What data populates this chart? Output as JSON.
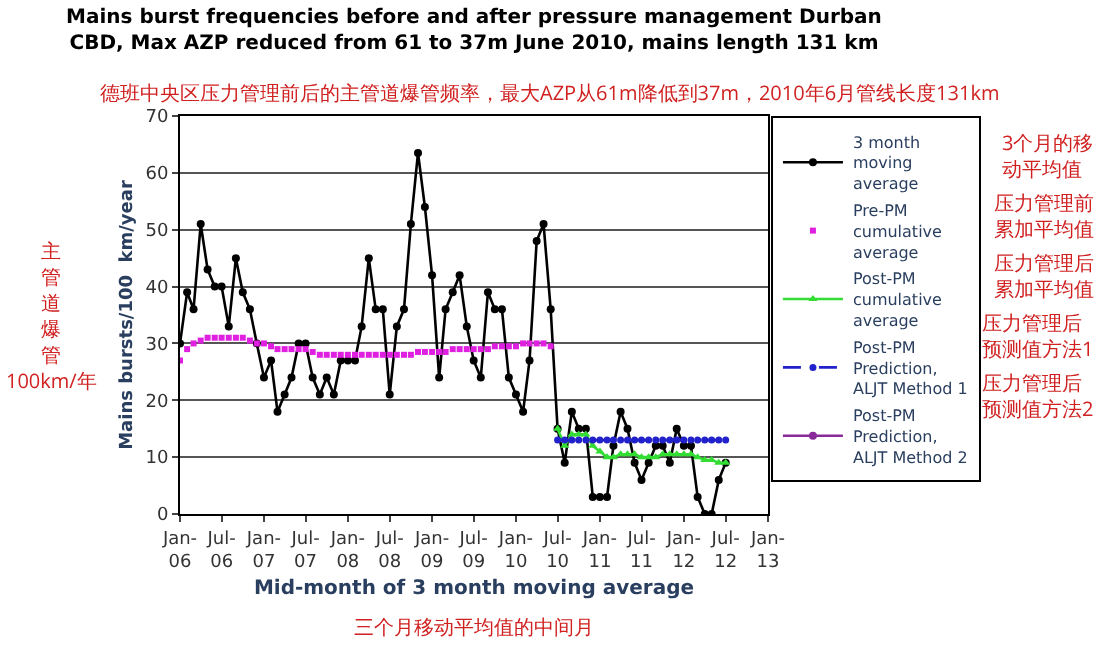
{
  "chart_data": {
    "type": "line",
    "title": "Mains burst frequencies before and after pressure management Durban\nCBD, Max AZP reduced from 61 to 37m June 2010, mains length 131 km",
    "subtitle": "德班中央区压力管理前后的主管道爆管频率，最大AZP从61m降低到37m，2010年6月管线长度131km",
    "xlabel": "Mid-month of 3 month moving average",
    "ylabel": "Mains bursts/100  km/year",
    "annotations": [
      "主管道爆管 100km/年",
      "三个月移动平均值的中间月",
      "3个月的移动平均值",
      "压力管理前累加平均值",
      "压力管理后累加平均值",
      "压力管理后预测值方法1",
      "压力管理后预测值方法2"
    ],
    "xlim": [
      "2006-01",
      "2013-01"
    ],
    "xticks": [
      {
        "value": "2006-01",
        "label": "Jan-\n06"
      },
      {
        "value": "2006-07",
        "label": "Jul-\n06"
      },
      {
        "value": "2007-01",
        "label": "Jan-\n07"
      },
      {
        "value": "2007-07",
        "label": "Jul-\n07"
      },
      {
        "value": "2008-01",
        "label": "Jan-\n08"
      },
      {
        "value": "2008-07",
        "label": "Jul-\n08"
      },
      {
        "value": "2009-01",
        "label": "Jan-\n09"
      },
      {
        "value": "2009-07",
        "label": "Jul-\n09"
      },
      {
        "value": "2010-01",
        "label": "Jan-\n10"
      },
      {
        "value": "2010-07",
        "label": "Jul-\n10"
      },
      {
        "value": "2011-01",
        "label": "Jan-\n11"
      },
      {
        "value": "2011-07",
        "label": "Jul-\n11"
      },
      {
        "value": "2012-01",
        "label": "Jan-\n12"
      },
      {
        "value": "2012-07",
        "label": "Jul-\n12"
      },
      {
        "value": "2013-01",
        "label": "Jan-\n13"
      }
    ],
    "ylim": [
      0,
      70
    ],
    "yticks": [
      0,
      10,
      20,
      30,
      40,
      50,
      60,
      70
    ],
    "grid": "y",
    "legend": "right",
    "series": [
      {
        "name": "3 month moving average",
        "marker": "circle",
        "color": "#000000",
        "x": [
          "2006-01",
          "2006-02",
          "2006-03",
          "2006-04",
          "2006-05",
          "2006-06",
          "2006-07",
          "2006-08",
          "2006-09",
          "2006-10",
          "2006-11",
          "2006-12",
          "2007-01",
          "2007-02",
          "2007-03",
          "2007-04",
          "2007-05",
          "2007-06",
          "2007-07",
          "2007-08",
          "2007-09",
          "2007-10",
          "2007-11",
          "2007-12",
          "2008-01",
          "2008-02",
          "2008-03",
          "2008-04",
          "2008-05",
          "2008-06",
          "2008-07",
          "2008-08",
          "2008-09",
          "2008-10",
          "2008-11",
          "2008-12",
          "2009-01",
          "2009-02",
          "2009-03",
          "2009-04",
          "2009-05",
          "2009-06",
          "2009-07",
          "2009-08",
          "2009-09",
          "2009-10",
          "2009-11",
          "2009-12",
          "2010-01",
          "2010-02",
          "2010-03",
          "2010-04",
          "2010-05",
          "2010-06",
          "2010-07",
          "2010-08",
          "2010-09",
          "2010-10",
          "2010-11",
          "2010-12",
          "2011-01",
          "2011-02",
          "2011-03",
          "2011-04",
          "2011-05",
          "2011-06",
          "2011-07",
          "2011-08",
          "2011-09",
          "2011-10",
          "2011-11",
          "2011-12",
          "2012-01",
          "2012-02",
          "2012-03",
          "2012-04",
          "2012-05",
          "2012-06",
          "2012-07"
        ],
        "values": [
          30,
          39,
          36,
          51,
          43,
          40,
          40,
          33,
          45,
          39,
          36,
          30,
          24,
          27,
          18,
          21,
          24,
          30,
          30,
          24,
          21,
          24,
          21,
          27,
          27,
          27,
          33,
          45,
          36,
          36,
          21,
          33,
          36,
          51,
          63.5,
          54,
          42,
          24,
          36,
          39,
          42,
          33,
          27,
          24,
          39,
          36,
          36,
          24,
          21,
          18,
          27,
          48,
          51,
          36,
          15,
          9,
          18,
          15,
          15,
          3,
          3,
          3,
          12,
          18,
          15,
          9,
          6,
          9,
          12,
          12,
          9,
          15,
          12,
          12,
          3,
          0,
          0,
          6,
          9
        ]
      },
      {
        "name": "Pre-PM cumulative average",
        "type": "scatter",
        "marker": "square",
        "color": "#e020e0",
        "x": [
          "2006-01",
          "2006-02",
          "2006-03",
          "2006-04",
          "2006-05",
          "2006-06",
          "2006-07",
          "2006-08",
          "2006-09",
          "2006-10",
          "2006-11",
          "2006-12",
          "2007-01",
          "2007-02",
          "2007-03",
          "2007-04",
          "2007-05",
          "2007-06",
          "2007-07",
          "2007-08",
          "2007-09",
          "2007-10",
          "2007-11",
          "2007-12",
          "2008-01",
          "2008-02",
          "2008-03",
          "2008-04",
          "2008-05",
          "2008-06",
          "2008-07",
          "2008-08",
          "2008-09",
          "2008-10",
          "2008-11",
          "2008-12",
          "2009-01",
          "2009-02",
          "2009-03",
          "2009-04",
          "2009-05",
          "2009-06",
          "2009-07",
          "2009-08",
          "2009-09",
          "2009-10",
          "2009-11",
          "2009-12",
          "2010-01",
          "2010-02",
          "2010-03",
          "2010-04",
          "2010-05",
          "2010-06"
        ],
        "values": [
          27,
          29,
          30,
          30.5,
          31,
          31,
          31,
          31,
          31,
          31,
          30.5,
          30,
          30,
          29.5,
          29,
          29,
          29,
          29,
          29,
          28.5,
          28,
          28,
          28,
          28,
          28,
          28,
          28,
          28,
          28,
          28,
          28,
          28,
          28,
          28,
          28.5,
          28.5,
          28.5,
          28.5,
          28.5,
          29,
          29,
          29,
          29,
          29,
          29,
          29.5,
          29.5,
          29.5,
          29.5,
          30,
          30,
          30,
          30,
          29.5
        ]
      },
      {
        "name": "Post-PM cumulative average",
        "type": "line",
        "marker": "triangle",
        "color": "#33dd33",
        "x": [
          "2010-07",
          "2010-08",
          "2010-09",
          "2010-10",
          "2010-11",
          "2010-12",
          "2011-01",
          "2011-02",
          "2011-03",
          "2011-04",
          "2011-05",
          "2011-06",
          "2011-07",
          "2011-08",
          "2011-09",
          "2011-10",
          "2011-11",
          "2011-12",
          "2012-01",
          "2012-02",
          "2012-03",
          "2012-04",
          "2012-05",
          "2012-06",
          "2012-07"
        ],
        "values": [
          15,
          12,
          14,
          14,
          14,
          12,
          11,
          10,
          10,
          10.5,
          10.5,
          10.5,
          10,
          10,
          10,
          10.5,
          10.5,
          10.5,
          10.5,
          10.5,
          10,
          9.5,
          9.5,
          9,
          9
        ]
      },
      {
        "name": "Post-PM Prediction, ALJT Method 1",
        "type": "line",
        "marker": "circle",
        "line_style": "dashed",
        "color": "#2222cc",
        "x": [
          "2010-07",
          "2010-08",
          "2010-09",
          "2010-10",
          "2010-11",
          "2010-12",
          "2011-01",
          "2011-02",
          "2011-03",
          "2011-04",
          "2011-05",
          "2011-06",
          "2011-07",
          "2011-08",
          "2011-09",
          "2011-10",
          "2011-11",
          "2011-12",
          "2012-01",
          "2012-02",
          "2012-03",
          "2012-04",
          "2012-05",
          "2012-06",
          "2012-07"
        ],
        "values": [
          13,
          13,
          13,
          13,
          13,
          13,
          13,
          13,
          13,
          13,
          13,
          13,
          13,
          13,
          13,
          13,
          13,
          13,
          13,
          13,
          13,
          13,
          13,
          13,
          13
        ]
      },
      {
        "name": "Post-PM Prediction, ALJT Method 2",
        "marker": "circle",
        "color": "#8a2a9a",
        "values": [
          null
        ]
      }
    ]
  }
}
